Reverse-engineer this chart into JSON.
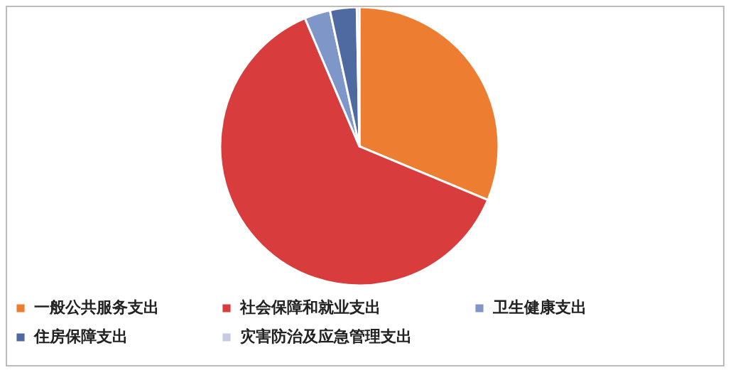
{
  "chart_data": {
    "type": "pie",
    "categories": [
      "一般公共服务支出",
      "社会保障和就业支出",
      "卫生健康支出",
      "住房保障支出",
      "灾害防治及应急管理支出"
    ],
    "values": [
      31.3,
      62.3,
      3.0,
      3.1,
      0.3
    ],
    "colors": [
      "#ed7d31",
      "#d93c3c",
      "#7f96c8",
      "#4f6aa0",
      "#c5cbe0"
    ],
    "legend": "bottom"
  }
}
